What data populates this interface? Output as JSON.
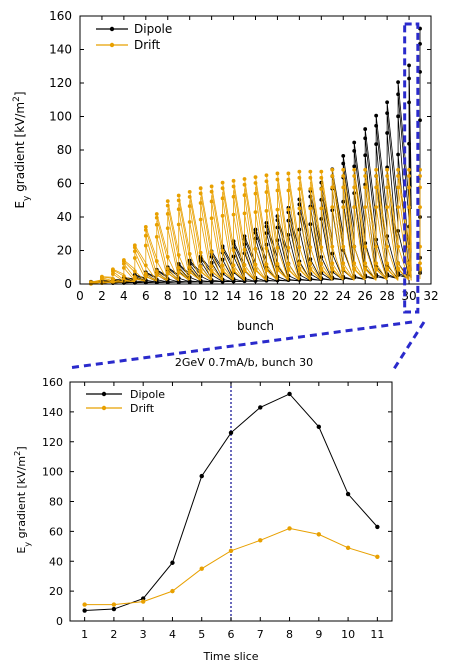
{
  "colors": {
    "dipole": "#000000",
    "drift": "#e8a000",
    "zoom_box": "#2a2acc",
    "marker_line": "#1a1a99"
  },
  "annotation": "2GeV 0.7mA/b, bunch 30",
  "chart_data": [
    {
      "type": "line",
      "xlabel": "bunch",
      "ylabel": "E_y gradient [kV/m^2]",
      "xlim": [
        0,
        32
      ],
      "ylim": [
        0,
        160
      ],
      "xticks": [
        "0",
        "2",
        "4",
        "6",
        "8",
        "10",
        "12",
        "14",
        "16",
        "18",
        "20",
        "22",
        "24",
        "26",
        "28",
        "30",
        "32"
      ],
      "yticks": [
        "0",
        "20",
        "40",
        "60",
        "80",
        "100",
        "120",
        "140",
        "160"
      ],
      "legend": "top-left",
      "series": [
        {
          "name": "Dipole",
          "bunch_peaks": [
            0.8,
            1.5,
            2.4,
            3.5,
            5.0,
            6.5,
            8.0,
            9.5,
            11.5,
            13.5,
            16,
            19,
            22,
            25,
            28,
            32,
            36,
            40,
            45,
            50,
            55,
            60,
            68,
            76,
            84,
            92,
            100,
            108,
            120,
            130,
            152
          ]
        },
        {
          "name": "Drift",
          "bunch_peaks": [
            1,
            4,
            8,
            13,
            21,
            31,
            38,
            45,
            48,
            50,
            52,
            53,
            55,
            56,
            57,
            58,
            59,
            60,
            60,
            61,
            61,
            61,
            62,
            62,
            62,
            62,
            62,
            62,
            62,
            62,
            62
          ]
        }
      ]
    },
    {
      "type": "line",
      "xlabel": "Time slice",
      "ylabel": "E_y gradient [kV/m^2]",
      "xlim": [
        0.5,
        11.5
      ],
      "ylim": [
        0,
        160
      ],
      "xticks": [
        "1",
        "2",
        "3",
        "4",
        "5",
        "6",
        "7",
        "8",
        "9",
        "10",
        "11"
      ],
      "yticks": [
        "0",
        "20",
        "40",
        "60",
        "80",
        "100",
        "120",
        "140",
        "160"
      ],
      "legend": "top-left",
      "vline_x": 6,
      "x": [
        1,
        2,
        3,
        4,
        5,
        6,
        7,
        8,
        9,
        10,
        11
      ],
      "series": [
        {
          "name": "Dipole",
          "values": [
            7,
            8,
            15,
            39,
            97,
            126,
            143,
            152,
            130,
            85,
            63
          ]
        },
        {
          "name": "Drift",
          "values": [
            11,
            11,
            13,
            20,
            35,
            47,
            54,
            62,
            58,
            49,
            43
          ]
        }
      ]
    }
  ]
}
